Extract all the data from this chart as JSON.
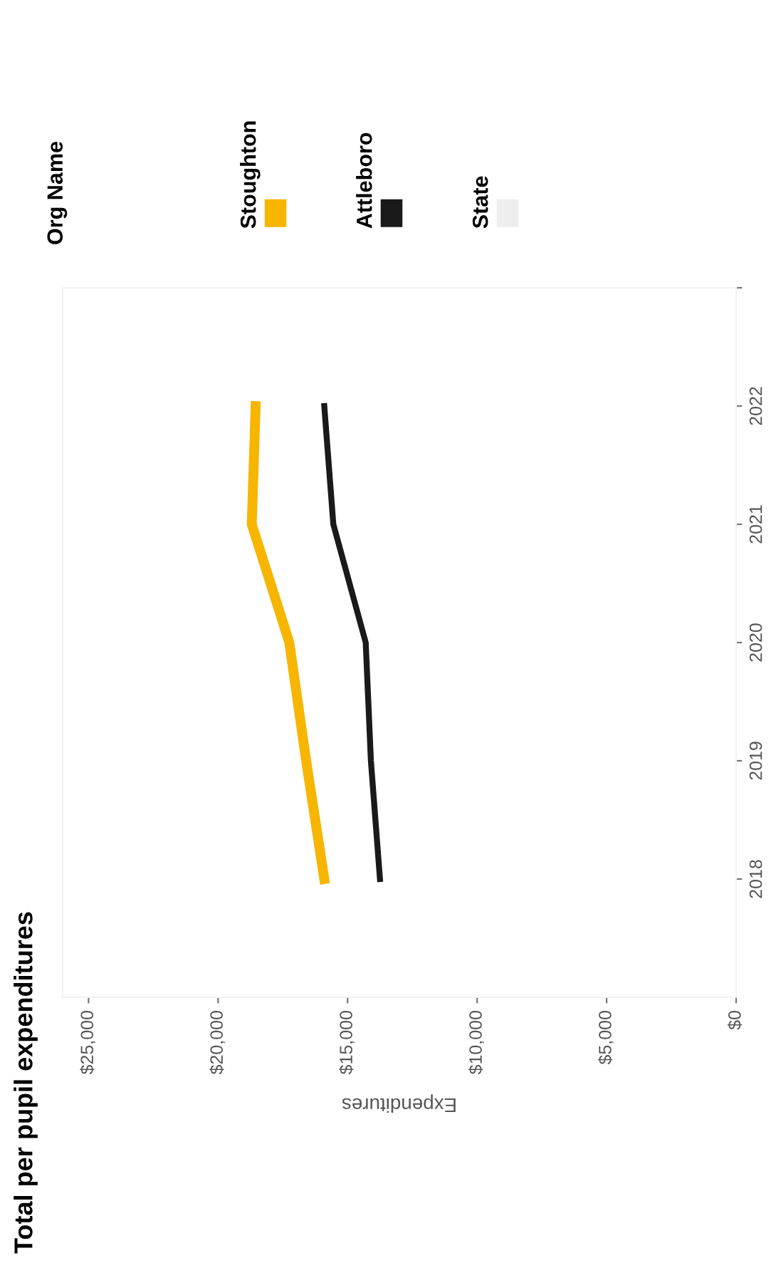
{
  "chart_data": {
    "type": "line",
    "title": "Total per pupil expenditures",
    "xlabel": "Expenditures",
    "legend_title": "Org Name",
    "series": [
      {
        "name": "Stoughton",
        "color": "#f7b500",
        "x": [
          15900,
          16600,
          17250,
          18700,
          18550
        ],
        "values": [
          2018,
          2019,
          2020,
          2021,
          2022
        ]
      },
      {
        "name": "Attleboro",
        "color": "#1a1a1a",
        "x": [
          13750,
          14100,
          14300,
          15550,
          15900
        ],
        "values": [
          2018,
          2019,
          2020,
          2021,
          2022
        ]
      },
      {
        "name": "State",
        "color": "#eeeeee",
        "x": [
          null,
          null,
          null,
          null,
          null
        ],
        "values": [
          null,
          null,
          null,
          null,
          null
        ]
      }
    ],
    "ylim": [
      2017,
      2023
    ],
    "yticks": [
      2018,
      2019,
      2020,
      2021,
      2022,
      {
        "value": 2023,
        "label": null
      }
    ],
    "xlim": [
      26000,
      0
    ],
    "xticks": [
      {
        "value": 0,
        "label": "$0"
      },
      {
        "value": 5000,
        "label": "$5,000"
      },
      {
        "value": 10000,
        "label": "$10,000"
      },
      {
        "value": 15000,
        "label": "$15,000"
      },
      {
        "value": 20000,
        "label": "$20,000"
      },
      {
        "value": 25000,
        "label": "$25,000"
      }
    ],
    "grid": false,
    "legend": "top",
    "marker": "none",
    "line_style": "solid"
  }
}
